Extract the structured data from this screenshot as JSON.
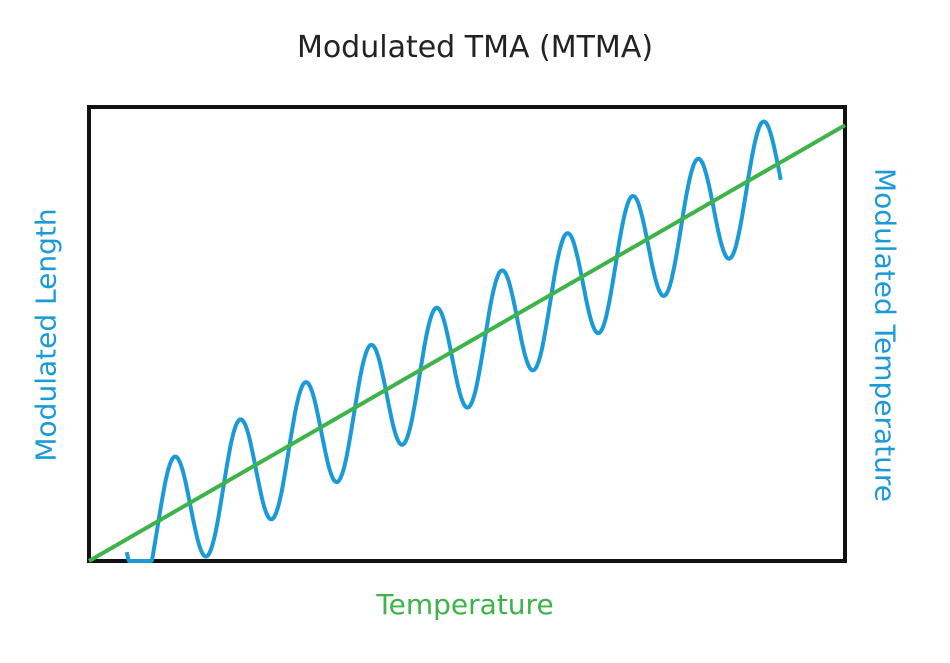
{
  "chart_data": {
    "type": "line",
    "title": "Modulated TMA (MTMA)",
    "xlabel": "Temperature",
    "ylabel_left": "Modulated Length",
    "ylabel_right": "Modulated Temperature",
    "colors": {
      "left_axis_label": "#1a9ad6",
      "right_axis_label": "#1a9ad6",
      "x_axis_label": "#3db34a",
      "modulated_series": "#1a9ad6",
      "linear_series": "#3db34a",
      "frame": "#111111"
    },
    "ticks_shown": false,
    "grid": false,
    "series": [
      {
        "role": "modulated",
        "description": "sinusoid superimposed on linear ramp",
        "x_start": 0.05,
        "x_end": 0.915,
        "cycles": 10,
        "trend_start": 0.04,
        "trend_end": 0.86,
        "amplitude": 0.13
      },
      {
        "role": "linear",
        "points": [
          [
            0.0,
            0.0
          ],
          [
            1.0,
            0.96
          ]
        ]
      }
    ]
  }
}
